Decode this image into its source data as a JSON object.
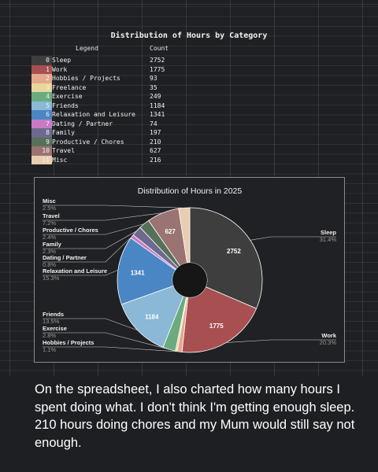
{
  "caption": "On the spreadsheet, I also charted how many hours I spent doing what. I don't think I'm getting enough sleep. 210 hours doing chores and my Mum would still say not enough.",
  "table": {
    "title": "Distribution of Hours by Category",
    "headers": {
      "legend": "Legend",
      "count": "Count"
    },
    "rows": [
      {
        "index": "0",
        "label": "Sleep",
        "count": "2752",
        "color": "#3e3e3e"
      },
      {
        "index": "1",
        "label": "Work",
        "count": "1775",
        "color": "#a84f52"
      },
      {
        "index": "2",
        "label": "Hobbies / Projects",
        "count": "93",
        "color": "#e4a98c"
      },
      {
        "index": "3",
        "label": "Freelance",
        "count": "35",
        "color": "#e8d79a"
      },
      {
        "index": "4",
        "label": "Exercise",
        "count": "249",
        "color": "#6bab7f"
      },
      {
        "index": "5",
        "label": "Friends",
        "count": "1184",
        "color": "#8ab8d6"
      },
      {
        "index": "6",
        "label": "Relaxation and Leisure",
        "count": "1341",
        "color": "#4a86c4"
      },
      {
        "index": "7",
        "label": "Dating / Partner",
        "count": "74",
        "color": "#c87ac4"
      },
      {
        "index": "8",
        "label": "Family",
        "count": "197",
        "color": "#6e6a8e"
      },
      {
        "index": "9",
        "label": "Productive / Chores",
        "count": "210",
        "color": "#56705a"
      },
      {
        "index": "10",
        "label": "Travel",
        "count": "627",
        "color": "#9a7472"
      },
      {
        "index": "11",
        "label": "Misc",
        "count": "216",
        "color": "#e9cdb0"
      }
    ]
  },
  "chart_data": {
    "type": "pie",
    "title": "Distribution of Hours in 2025",
    "donut": true,
    "slices": [
      {
        "label": "Sleep",
        "value": 2752,
        "pct": "31.4%",
        "color": "#3e3e3e"
      },
      {
        "label": "Work",
        "value": 1775,
        "pct": "20.3%",
        "color": "#a84f52"
      },
      {
        "label": "Hobbies / Projects",
        "value": 93,
        "pct": "1.1%",
        "color": "#e4a98c"
      },
      {
        "label": "Freelance",
        "value": 35,
        "pct": "",
        "color": "#e8d79a"
      },
      {
        "label": "Exercise",
        "value": 249,
        "pct": "2.8%",
        "color": "#6bab7f"
      },
      {
        "label": "Friends",
        "value": 1184,
        "pct": "13.5%",
        "color": "#8ab8d6"
      },
      {
        "label": "Relaxation and Leisure",
        "value": 1341,
        "pct": "15.3%",
        "color": "#4a86c4"
      },
      {
        "label": "Dating / Partner",
        "value": 74,
        "pct": "0.8%",
        "color": "#c87ac4"
      },
      {
        "label": "Family",
        "value": 197,
        "pct": "2.3%",
        "color": "#6e6a8e"
      },
      {
        "label": "Productive / Chores",
        "value": 210,
        "pct": "2.4%",
        "color": "#56705a"
      },
      {
        "label": "Travel",
        "value": 627,
        "pct": "7.2%",
        "color": "#9a7472"
      },
      {
        "label": "Misc",
        "value": 216,
        "pct": "2.5%",
        "color": "#e9cdb0"
      }
    ],
    "value_labels_on": [
      "Sleep",
      "Work",
      "Friends",
      "Relaxation and Leisure",
      "Travel"
    ]
  }
}
